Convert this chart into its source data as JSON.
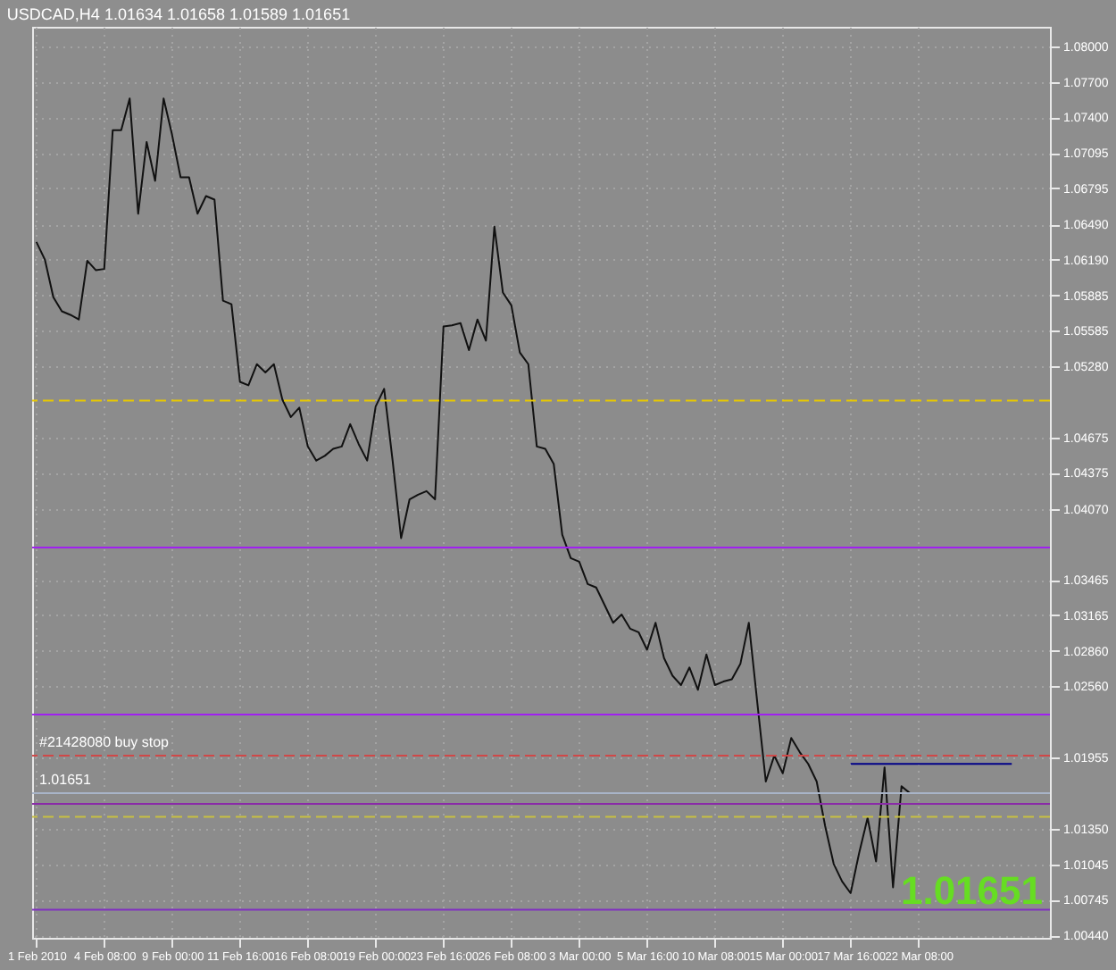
{
  "chart_data": {
    "type": "line",
    "title": "USDCAD,H4  1.01634 1.01658 1.01589 1.01651",
    "categories": [
      "1 Feb 2010",
      null,
      null,
      null,
      null,
      null,
      null,
      null,
      "4 Feb 08:00",
      null,
      null,
      null,
      null,
      null,
      null,
      null,
      "9 Feb 00:00",
      null,
      null,
      null,
      null,
      null,
      null,
      null,
      "11 Feb 16:00",
      null,
      null,
      null,
      null,
      null,
      null,
      null,
      "16 Feb 08:00",
      null,
      null,
      null,
      null,
      null,
      null,
      null,
      "19 Feb 00:00",
      null,
      null,
      null,
      null,
      null,
      null,
      null,
      "23 Feb 16:00",
      null,
      null,
      null,
      null,
      null,
      null,
      null,
      "26 Feb 08:00",
      null,
      null,
      null,
      null,
      null,
      null,
      null,
      "3 Mar 00:00",
      null,
      null,
      null,
      null,
      null,
      null,
      null,
      "5 Mar 16:00",
      null,
      null,
      null,
      null,
      null,
      null,
      null,
      "10 Mar 08:00",
      null,
      null,
      null,
      null,
      null,
      null,
      null,
      "15 Mar 00:00",
      null,
      null,
      null,
      null,
      null,
      null,
      null,
      "17 Mar 16:00",
      null,
      null,
      null,
      null,
      null,
      null,
      null,
      "22 Mar 08:00",
      null,
      null,
      null,
      null,
      null,
      null,
      null,
      null,
      null,
      null,
      null,
      null,
      null,
      null,
      null
    ],
    "ylim": [
      1.0042,
      1.0817
    ],
    "yticks": [
      {
        "value": 1.08,
        "label": "1.08000"
      },
      {
        "value": 1.077,
        "label": "1.07700"
      },
      {
        "value": 1.074,
        "label": "1.07400"
      },
      {
        "value": 1.07095,
        "label": "1.07095"
      },
      {
        "value": 1.06795,
        "label": "1.06795"
      },
      {
        "value": 1.0649,
        "label": "1.06490"
      },
      {
        "value": 1.0619,
        "label": "1.06190"
      },
      {
        "value": 1.05885,
        "label": "1.05885"
      },
      {
        "value": 1.05585,
        "label": "1.05585"
      },
      {
        "value": 1.0528,
        "label": "1.05280"
      },
      {
        "value": 1.04675,
        "label": "1.04675"
      },
      {
        "value": 1.04375,
        "label": "1.04375"
      },
      {
        "value": 1.0407,
        "label": "1.04070"
      },
      {
        "value": 1.03465,
        "label": "1.03465"
      },
      {
        "value": 1.03165,
        "label": "1.03165"
      },
      {
        "value": 1.0286,
        "label": "1.02860"
      },
      {
        "value": 1.0256,
        "label": "1.02560"
      },
      {
        "value": 1.01955,
        "label": "1.01955"
      },
      {
        "value": 1.0135,
        "label": "1.01350"
      },
      {
        "value": 1.01045,
        "label": "1.01045"
      },
      {
        "value": 1.00745,
        "label": "1.00745"
      },
      {
        "value": 1.0044,
        "label": "1.00440"
      }
    ],
    "grid": true,
    "line_style": "solid",
    "series": [
      {
        "color": "#111111",
        "values": [
          1.0634,
          1.0619,
          1.0587,
          1.0575,
          1.0572,
          1.0568,
          1.0618,
          1.061,
          1.0611,
          1.0729,
          1.0729,
          1.0756,
          1.0658,
          1.0719,
          1.0686,
          1.0756,
          1.0725,
          1.0689,
          1.0689,
          1.0658,
          1.0673,
          1.067,
          1.0584,
          1.0581,
          1.0515,
          1.0512,
          1.053,
          1.0523,
          1.053,
          1.05,
          1.0485,
          1.0493,
          1.046,
          1.0448,
          1.0452,
          1.0458,
          1.046,
          1.0479,
          1.0462,
          1.0448,
          1.0494,
          1.0509,
          1.0448,
          1.0382,
          1.0415,
          1.0419,
          1.0422,
          1.0415,
          1.0562,
          1.0563,
          1.0565,
          1.0542,
          1.0568,
          1.055,
          1.0647,
          1.0591,
          1.058,
          1.054,
          1.053,
          1.046,
          1.0458,
          1.0445,
          1.0385,
          1.0365,
          1.0362,
          1.0343,
          1.034,
          1.0325,
          1.031,
          1.0317,
          1.0305,
          1.0302,
          1.0287,
          1.031,
          1.028,
          1.0265,
          1.0257,
          1.0272,
          1.0253,
          1.0283,
          1.0257,
          1.026,
          1.0262,
          1.0275,
          1.031,
          1.0242,
          1.0175,
          1.0197,
          1.0182,
          1.0212,
          1.02,
          1.019,
          1.0175,
          1.0137,
          1.0105,
          1.009,
          1.008,
          1.0114,
          1.0144,
          1.0107,
          1.0187,
          1.0085,
          1.0171,
          1.0165,
          null,
          null,
          null,
          null,
          null,
          null,
          null,
          null,
          null,
          null,
          null,
          null,
          null,
          null,
          null,
          null
        ]
      },
      {
        "color": "#000088",
        "values": [
          null,
          null,
          null,
          null,
          null,
          null,
          null,
          null,
          null,
          null,
          null,
          null,
          null,
          null,
          null,
          null,
          null,
          null,
          null,
          null,
          null,
          null,
          null,
          null,
          null,
          null,
          null,
          null,
          null,
          null,
          null,
          null,
          null,
          null,
          null,
          null,
          null,
          null,
          null,
          null,
          null,
          null,
          null,
          null,
          null,
          null,
          null,
          null,
          null,
          null,
          null,
          null,
          null,
          null,
          null,
          null,
          null,
          null,
          null,
          null,
          null,
          null,
          null,
          null,
          null,
          null,
          null,
          null,
          null,
          null,
          null,
          null,
          null,
          null,
          null,
          null,
          null,
          null,
          null,
          null,
          null,
          null,
          null,
          null,
          null,
          null,
          null,
          null,
          null,
          null,
          null,
          null,
          null,
          null,
          null,
          null,
          1.019,
          1.019,
          1.019,
          1.019,
          1.019,
          1.019,
          1.019,
          1.019,
          1.019,
          1.019,
          1.019,
          1.019,
          1.019,
          1.019,
          1.019,
          1.019,
          1.019,
          1.019,
          1.019,
          1.019,
          null,
          null,
          null,
          null
        ]
      }
    ],
    "ref_lines": [
      {
        "axis": "y",
        "value": 1.0499,
        "color": "#e8c800",
        "line_style": "dashed"
      },
      {
        "axis": "y",
        "value": 1.0374,
        "color": "#a020f0",
        "line_style": "solid"
      },
      {
        "axis": "y",
        "value": 1.0232,
        "color": "#a020f0",
        "line_style": "solid"
      },
      {
        "axis": "y",
        "value": 1.0197,
        "label": "#21428080 buy stop",
        "color": "#d04848",
        "line_style": "dashed"
      },
      {
        "axis": "y",
        "value": 1.01651,
        "label": "1.01651",
        "color": "#a8b4c8",
        "line_style": "solid"
      },
      {
        "axis": "y",
        "value": 1.0156,
        "color": "#8a2aa8",
        "line_style": "solid"
      },
      {
        "axis": "y",
        "value": 1.0145,
        "color": "#c8c040",
        "line_style": "dashed"
      },
      {
        "axis": "y",
        "value": 1.0066,
        "color": "#8030c0",
        "line_style": "solid"
      }
    ],
    "annotations": [
      "1.01651"
    ]
  }
}
